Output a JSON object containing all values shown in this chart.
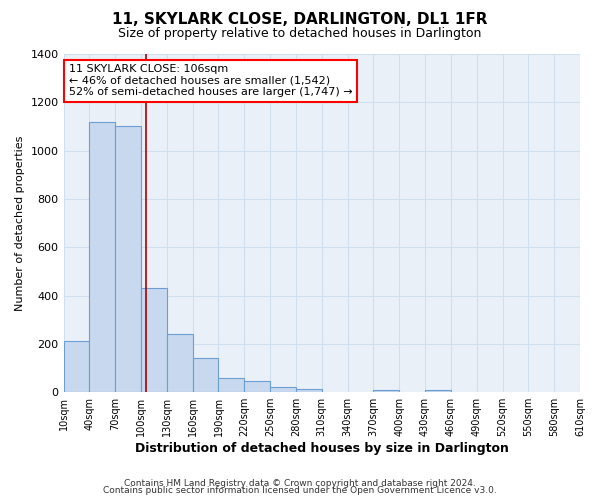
{
  "title": "11, SKYLARK CLOSE, DARLINGTON, DL1 1FR",
  "subtitle": "Size of property relative to detached houses in Darlington",
  "xlabel": "Distribution of detached houses by size in Darlington",
  "ylabel": "Number of detached properties",
  "footer_lines": [
    "Contains HM Land Registry data © Crown copyright and database right 2024.",
    "Contains public sector information licensed under the Open Government Licence v3.0."
  ],
  "bin_labels": [
    "10sqm",
    "40sqm",
    "70sqm",
    "100sqm",
    "130sqm",
    "160sqm",
    "190sqm",
    "220sqm",
    "250sqm",
    "280sqm",
    "310sqm",
    "340sqm",
    "370sqm",
    "400sqm",
    "430sqm",
    "460sqm",
    "490sqm",
    "520sqm",
    "550sqm",
    "580sqm",
    "610sqm"
  ],
  "bar_values": [
    210,
    1120,
    1100,
    430,
    240,
    140,
    60,
    45,
    20,
    15,
    0,
    0,
    10,
    0,
    10,
    0,
    0,
    0,
    0,
    0
  ],
  "bin_edges": [
    10,
    40,
    70,
    100,
    130,
    160,
    190,
    220,
    250,
    280,
    310,
    340,
    370,
    400,
    430,
    460,
    490,
    520,
    550,
    580,
    610
  ],
  "bar_color": "#c8d9ef",
  "bar_edge_color": "#6b9fd4",
  "marker_x": 106,
  "marker_color": "#aa0000",
  "ylim": [
    0,
    1400
  ],
  "xlim": [
    10,
    610
  ],
  "annotation_title": "11 SKYLARK CLOSE: 106sqm",
  "annotation_line1": "← 46% of detached houses are smaller (1,542)",
  "annotation_line2": "52% of semi-detached houses are larger (1,747) →",
  "grid_color": "#d0dff0",
  "background_color": "#ffffff",
  "plot_bg_color": "#eaf0f8"
}
